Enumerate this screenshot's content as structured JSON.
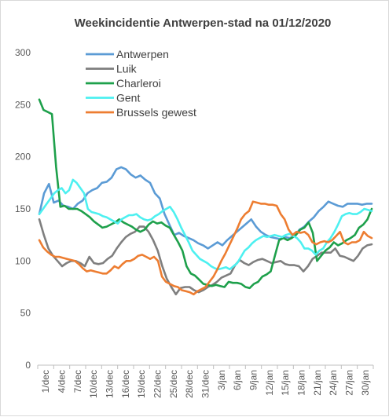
{
  "chart_data": {
    "type": "line",
    "title": "Weekincidentie  Antwerpen-stad  na 01/12/2020",
    "xlabel": "",
    "ylabel": "",
    "ylim": [
      0,
      300
    ],
    "yticks": [
      0,
      50,
      100,
      150,
      200,
      250,
      300
    ],
    "grid": false,
    "legend_position": "top-center",
    "x_tick_labels": [
      "1/dec",
      "4/dec",
      "7/dec",
      "10/dec",
      "13/dec",
      "16/dec",
      "19/dec",
      "22/dec",
      "25/dec",
      "28/dec",
      "31/dec",
      "3/jan",
      "6/jan",
      "9/jan",
      "12/jan",
      "15/jan",
      "18/jan",
      "21/jan",
      "24/jan",
      "27/jan",
      "30/jan"
    ],
    "series": [
      {
        "name": "Antwerpen",
        "color": "#5b9bd5",
        "values": [
          145,
          165,
          174,
          156,
          158,
          153,
          152,
          150,
          155,
          158,
          165,
          168,
          170,
          175,
          176,
          180,
          188,
          190,
          188,
          183,
          180,
          182,
          178,
          175,
          165,
          160,
          145,
          135,
          125,
          127,
          124,
          122,
          120,
          117,
          115,
          112,
          115,
          118,
          115,
          120,
          124,
          128,
          132,
          136,
          140,
          133,
          128,
          125,
          123,
          122,
          121,
          123,
          122,
          124,
          130,
          133,
          138,
          142,
          148,
          152,
          157,
          155,
          153,
          152,
          155,
          155,
          155,
          154,
          155,
          155
        ]
      },
      {
        "name": "Luik",
        "color": "#7f7f7f",
        "values": [
          140,
          125,
          112,
          105,
          100,
          95,
          98,
          100,
          100,
          98,
          95,
          104,
          98,
          97,
          98,
          102,
          105,
          112,
          118,
          123,
          126,
          128,
          133,
          133,
          128,
          120,
          110,
          95,
          83,
          75,
          68,
          74,
          75,
          75,
          72,
          70,
          72,
          75,
          77,
          80,
          84,
          86,
          88,
          96,
          101,
          98,
          96,
          99,
          101,
          102,
          100,
          98,
          99,
          100,
          97,
          96,
          96,
          95,
          90,
          95,
          102,
          105,
          108,
          108,
          108,
          112,
          105,
          104,
          102,
          100,
          105,
          112,
          115,
          116
        ]
      },
      {
        "name": "Charleroi",
        "color": "#1ea04b",
        "values": [
          255,
          245,
          243,
          241,
          190,
          152,
          153,
          150,
          150,
          150,
          148,
          145,
          142,
          138,
          135,
          132,
          133,
          135,
          137,
          140,
          137,
          135,
          133,
          130,
          128,
          130,
          135,
          138,
          136,
          137,
          134,
          132,
          125,
          118,
          110,
          95,
          88,
          86,
          82,
          78,
          77,
          76,
          77,
          76,
          75,
          80,
          79,
          79,
          78,
          75,
          74,
          78,
          80,
          85,
          87,
          90,
          105,
          120,
          122,
          120,
          122,
          125,
          130,
          132,
          137,
          127,
          100,
          105,
          110,
          113,
          118,
          115,
          117,
          120,
          122,
          125,
          132,
          135,
          140,
          150
        ]
      },
      {
        "name": "Gent",
        "color": "#4df0f0",
        "values": [
          145,
          150,
          155,
          160,
          165,
          168,
          170,
          165,
          168,
          178,
          175,
          170,
          165,
          150,
          147,
          146,
          145,
          143,
          142,
          140,
          138,
          136,
          140,
          142,
          144,
          144,
          145,
          142,
          140,
          139,
          140,
          143,
          145,
          148,
          150,
          152,
          147,
          140,
          132,
          125,
          118,
          110,
          106,
          102,
          100,
          98,
          95,
          93,
          92,
          93,
          94,
          92,
          95,
          98,
          104,
          110,
          113,
          117,
          120,
          122,
          124,
          123,
          124,
          125,
          124,
          123,
          125,
          126,
          124,
          122,
          118,
          112,
          112,
          110,
          106,
          110,
          112,
          118,
          122,
          128,
          135,
          143,
          145,
          146,
          145,
          145,
          147,
          150,
          149,
          148
        ]
      },
      {
        "name": "Brussels gewest",
        "color": "#ed7d31",
        "values": [
          120,
          113,
          109,
          106,
          104,
          104,
          103,
          102,
          101,
          100,
          97,
          93,
          90,
          91,
          90,
          89,
          88,
          88,
          91,
          95,
          93,
          97,
          100,
          100,
          102,
          105,
          106,
          104,
          102,
          104,
          100,
          85,
          80,
          78,
          76,
          75,
          72,
          71,
          70,
          68,
          71,
          73,
          75,
          80,
          85,
          92,
          100,
          107,
          115,
          123,
          131,
          140,
          145,
          148,
          157,
          156,
          155,
          155,
          154,
          154,
          153,
          145,
          140,
          130,
          125,
          128,
          127,
          128,
          125,
          118,
          116,
          118,
          119,
          118,
          120,
          124,
          128,
          118,
          116,
          118,
          118,
          120,
          128,
          124,
          122
        ]
      }
    ]
  }
}
